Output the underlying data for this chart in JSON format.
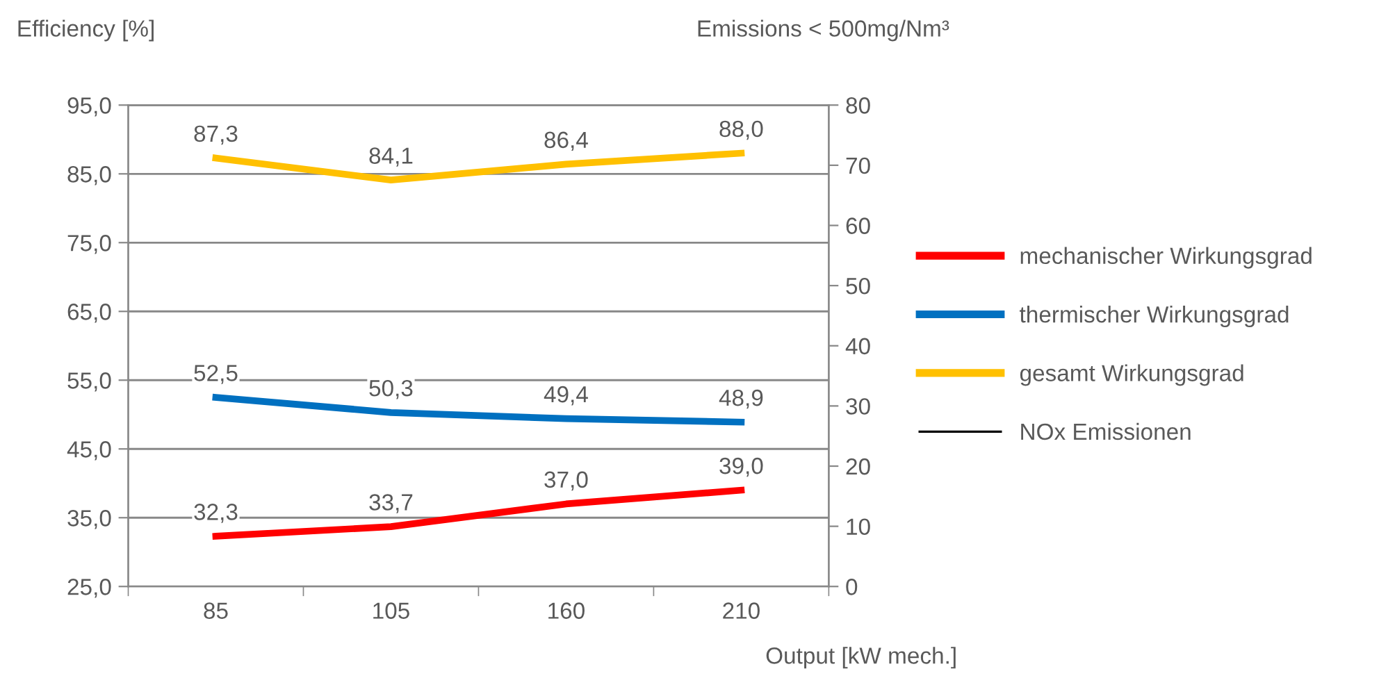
{
  "chart_data": {
    "type": "line",
    "ylabel": "Efficiency [%]",
    "y2label": "Emissions < 500mg/Nm³",
    "xlabel": "Output [kW mech.]",
    "categories": [
      "85",
      "105",
      "160",
      "210"
    ],
    "series": [
      {
        "name": "mechanischer Wirkungsgrad",
        "color": "#ff0000",
        "values": [
          32.3,
          33.7,
          37.0,
          39.0
        ],
        "value_labels": [
          "32,3",
          "33,7",
          "37,0",
          "39,0"
        ]
      },
      {
        "name": "thermischer Wirkungsgrad",
        "color": "#0070c0",
        "values": [
          52.5,
          50.3,
          49.4,
          48.9
        ],
        "value_labels": [
          "52,5",
          "50,3",
          "49,4",
          "48,9"
        ]
      },
      {
        "name": "gesamt Wirkungsgrad",
        "color": "#ffc000",
        "values": [
          87.3,
          84.1,
          86.4,
          88.0
        ],
        "value_labels": [
          "87,3",
          "84,1",
          "86,4",
          "88,0"
        ]
      },
      {
        "name": "NOx Emissionen",
        "color": "#000000",
        "axis": "y2",
        "values": [
          null,
          null,
          null,
          null
        ]
      }
    ],
    "ylim": [
      25,
      95
    ],
    "yticks": [
      {
        "value": 25,
        "label": "25,0"
      },
      {
        "value": 35,
        "label": "35,0"
      },
      {
        "value": 45,
        "label": "45,0"
      },
      {
        "value": 55,
        "label": "55,0"
      },
      {
        "value": 65,
        "label": "65,0"
      },
      {
        "value": 75,
        "label": "75,0"
      },
      {
        "value": 85,
        "label": "85,0"
      },
      {
        "value": 95,
        "label": "95,0"
      }
    ],
    "y2lim": [
      0,
      80
    ],
    "y2ticks": [
      0,
      10,
      20,
      30,
      40,
      50,
      60,
      70,
      80
    ],
    "grid": "y",
    "legend": "right",
    "marker": "none",
    "line_style": "solid"
  }
}
